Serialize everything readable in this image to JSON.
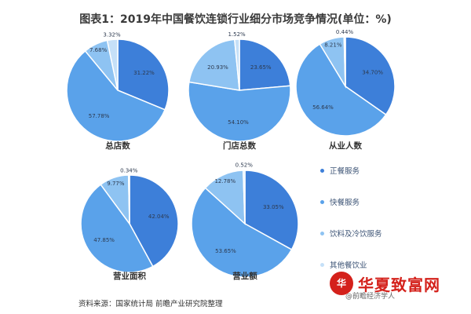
{
  "title": "图表1：2019年中国餐饮连锁行业细分市场竞争情况(单位：%)",
  "legend": [
    {
      "label": "正餐服务",
      "color": "#3d7fd9"
    },
    {
      "label": "快餐服务",
      "color": "#5aa2ea"
    },
    {
      "label": "饮料及冷饮服务",
      "color": "#8ec3f2"
    },
    {
      "label": "其他餐饮业",
      "color": "#c5e0f8"
    }
  ],
  "chart_data": [
    {
      "type": "pie",
      "title": "总店数",
      "labels": [
        "31.22%",
        "57.78%",
        "7.68%",
        "3.32%"
      ],
      "values": [
        31.22,
        57.78,
        7.68,
        3.32
      ]
    },
    {
      "type": "pie",
      "title": "门店总数",
      "labels": [
        "23.65%",
        "54.10%",
        "20.93%",
        "1.52%"
      ],
      "values": [
        23.65,
        54.1,
        20.93,
        1.52
      ]
    },
    {
      "type": "pie",
      "title": "从业人数",
      "labels": [
        "34.70%",
        "56.64%",
        "8.21%",
        "0.44%"
      ],
      "values": [
        34.7,
        56.64,
        8.21,
        0.44
      ]
    },
    {
      "type": "pie",
      "title": "营业面积",
      "labels": [
        "42.04%",
        "47.85%",
        "9.77%",
        "0.34%"
      ],
      "values": [
        42.04,
        47.85,
        9.77,
        0.34
      ]
    },
    {
      "type": "pie",
      "title": "营业额",
      "labels": [
        "33.05%",
        "53.65%",
        "12.78%",
        "0.52%"
      ],
      "values": [
        33.05,
        53.65,
        12.78,
        0.52
      ]
    }
  ],
  "source": "资料来源：国家统计局 前瞻产业研究院整理",
  "brand": {
    "logo_text": "华",
    "name": "华夏致富网",
    "sub": "@前瞻经济学人"
  }
}
